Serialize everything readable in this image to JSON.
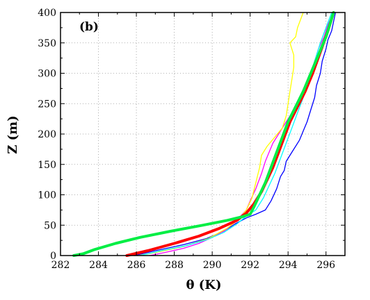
{
  "chart_data": {
    "type": "line",
    "panel_label": "(b)",
    "xlabel": "θ (K)",
    "ylabel": "Z (m)",
    "xlim": [
      282,
      297
    ],
    "ylim": [
      0,
      400
    ],
    "xticks": [
      282,
      284,
      286,
      288,
      290,
      292,
      294,
      296
    ],
    "yticks": [
      0,
      50,
      100,
      150,
      200,
      250,
      300,
      350,
      400
    ],
    "grid": true,
    "legend": "none",
    "series": [
      {
        "color": "#0000ff",
        "points": [
          [
            285.9,
            0
          ],
          [
            287.0,
            8
          ],
          [
            288.5,
            18
          ],
          [
            289.7,
            28
          ],
          [
            290.6,
            40
          ],
          [
            291.2,
            52
          ],
          [
            291.8,
            62
          ],
          [
            292.3,
            68
          ],
          [
            292.8,
            75
          ],
          [
            293.1,
            90
          ],
          [
            293.4,
            110
          ],
          [
            293.6,
            130
          ],
          [
            293.8,
            140
          ],
          [
            293.9,
            155
          ],
          [
            294.1,
            165
          ],
          [
            294.3,
            175
          ],
          [
            294.6,
            190
          ],
          [
            294.8,
            205
          ],
          [
            295.0,
            220
          ],
          [
            295.2,
            240
          ],
          [
            295.4,
            260
          ],
          [
            295.5,
            280
          ],
          [
            295.7,
            300
          ],
          [
            295.8,
            320
          ],
          [
            296.0,
            340
          ],
          [
            296.1,
            355
          ],
          [
            296.3,
            370
          ],
          [
            296.4,
            385
          ],
          [
            296.5,
            400
          ]
        ]
      },
      {
        "color": "#ff00ff",
        "points": [
          [
            286.7,
            0
          ],
          [
            287.5,
            5
          ],
          [
            288.5,
            12
          ],
          [
            289.3,
            20
          ],
          [
            290.0,
            30
          ],
          [
            290.7,
            42
          ],
          [
            291.2,
            55
          ],
          [
            291.5,
            65
          ],
          [
            291.8,
            75
          ],
          [
            292.0,
            90
          ],
          [
            292.3,
            110
          ],
          [
            292.6,
            135
          ],
          [
            292.8,
            155
          ],
          [
            293.0,
            170
          ],
          [
            293.2,
            185
          ],
          [
            293.5,
            200
          ],
          [
            293.9,
            220
          ],
          [
            294.3,
            240
          ],
          [
            294.6,
            260
          ],
          [
            294.9,
            280
          ],
          [
            295.2,
            300
          ],
          [
            295.4,
            320
          ],
          [
            295.6,
            340
          ],
          [
            295.9,
            360
          ],
          [
            296.1,
            380
          ],
          [
            296.4,
            400
          ]
        ]
      },
      {
        "color": "#ffff00",
        "points": [
          [
            286.1,
            0
          ],
          [
            287.0,
            5
          ],
          [
            288.5,
            15
          ],
          [
            289.8,
            28
          ],
          [
            290.8,
            45
          ],
          [
            291.4,
            60
          ],
          [
            291.8,
            75
          ],
          [
            292.1,
            95
          ],
          [
            292.3,
            120
          ],
          [
            292.5,
            145
          ],
          [
            292.6,
            165
          ],
          [
            292.9,
            180
          ],
          [
            293.3,
            195
          ],
          [
            293.7,
            210
          ],
          [
            293.9,
            230
          ],
          [
            294.0,
            250
          ],
          [
            294.1,
            270
          ],
          [
            294.2,
            290
          ],
          [
            294.3,
            310
          ],
          [
            294.3,
            330
          ],
          [
            294.1,
            350
          ],
          [
            294.4,
            360
          ],
          [
            294.5,
            375
          ],
          [
            294.8,
            400
          ]
        ]
      },
      {
        "color": "#00ffff",
        "points": [
          [
            286.2,
            0
          ],
          [
            287.3,
            8
          ],
          [
            288.6,
            16
          ],
          [
            289.7,
            26
          ],
          [
            290.6,
            38
          ],
          [
            291.3,
            52
          ],
          [
            291.8,
            65
          ],
          [
            292.3,
            75
          ],
          [
            292.7,
            95
          ],
          [
            293.0,
            115
          ],
          [
            293.3,
            135
          ],
          [
            293.6,
            160
          ],
          [
            293.9,
            185
          ],
          [
            294.2,
            210
          ],
          [
            294.5,
            235
          ],
          [
            294.8,
            260
          ],
          [
            295.1,
            290
          ],
          [
            295.4,
            320
          ],
          [
            295.7,
            350
          ],
          [
            296.0,
            375
          ],
          [
            296.3,
            400
          ]
        ]
      },
      {
        "color": "#ff0000",
        "width": 4,
        "points": [
          [
            285.5,
            0
          ],
          [
            286.6,
            8
          ],
          [
            288.0,
            20
          ],
          [
            289.3,
            32
          ],
          [
            290.4,
            45
          ],
          [
            291.3,
            58
          ],
          [
            291.8,
            70
          ],
          [
            292.2,
            85
          ],
          [
            292.6,
            105
          ],
          [
            292.9,
            125
          ],
          [
            293.2,
            145
          ],
          [
            293.5,
            170
          ],
          [
            293.8,
            195
          ],
          [
            294.1,
            220
          ],
          [
            294.5,
            245
          ],
          [
            294.9,
            270
          ],
          [
            295.3,
            300
          ],
          [
            295.7,
            335
          ],
          [
            296.1,
            370
          ],
          [
            296.4,
            400
          ]
        ]
      },
      {
        "color": "#00ee44",
        "width": 4,
        "points": [
          [
            282.7,
            0
          ],
          [
            283.2,
            3
          ],
          [
            283.8,
            10
          ],
          [
            284.9,
            20
          ],
          [
            286.2,
            30
          ],
          [
            287.8,
            40
          ],
          [
            289.5,
            50
          ],
          [
            290.8,
            58
          ],
          [
            291.6,
            64
          ],
          [
            292.0,
            68
          ],
          [
            292.2,
            80
          ],
          [
            292.5,
            100
          ],
          [
            292.8,
            120
          ],
          [
            293.1,
            145
          ],
          [
            293.4,
            170
          ],
          [
            293.7,
            195
          ],
          [
            294.0,
            220
          ],
          [
            294.4,
            245
          ],
          [
            294.8,
            270
          ],
          [
            295.2,
            300
          ],
          [
            295.6,
            330
          ],
          [
            296.0,
            360
          ],
          [
            296.4,
            400
          ]
        ]
      }
    ]
  }
}
